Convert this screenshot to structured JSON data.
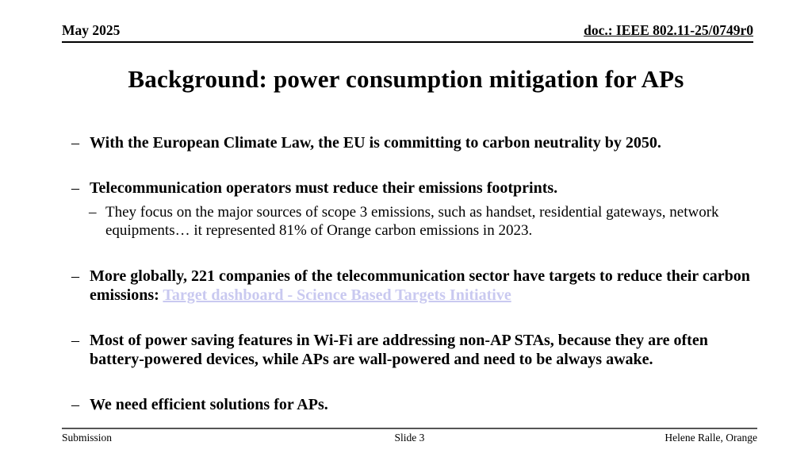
{
  "header": {
    "date": "May 2025",
    "doc_id": "doc.: IEEE 802.11-25/0749r0"
  },
  "title": "Background: power consumption mitigation for APs",
  "glyphs": {
    "dash": "–"
  },
  "colors": {
    "link": "#c9c9f0",
    "footer_rule": "#555555"
  },
  "bullets": [
    {
      "level": 1,
      "text": "With the European Climate Law, the EU is committing to carbon neutrality by 2050."
    },
    {
      "level": 1,
      "text": "Telecommunication operators must reduce their emissions footprints."
    },
    {
      "level": 2,
      "text": "They focus on the major sources of scope 3 emissions, such as handset, residential gateways, network equipments… it represented 81% of Orange carbon emissions in 2023."
    },
    {
      "level": 1,
      "text": "More globally, 221 companies of the telecommunication sector have targets to reduce their carbon emissions: ",
      "link_text": "Target dashboard - Science Based Targets Initiative"
    },
    {
      "level": 1,
      "text": "Most of power saving features in Wi-Fi are addressing non-AP STAs, because they are often battery-powered devices, while APs are wall-powered and need to be always awake."
    },
    {
      "level": 1,
      "text": "We need efficient solutions for APs."
    }
  ],
  "footer": {
    "left": "Submission",
    "center": "Slide 3",
    "right": "Helene Ralle, Orange"
  }
}
